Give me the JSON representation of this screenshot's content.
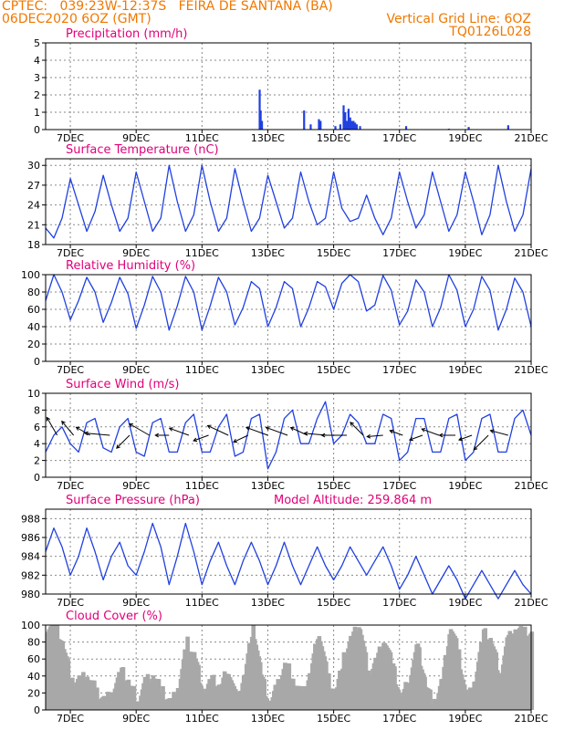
{
  "header": {
    "line1_left": "CPTEC:   039:23W-12:37S   FEIRA DE SANTANA (BA)",
    "line2_left": "06DEC2020 6OZ (GMT)",
    "line2_right": "Vertical Grid Line: 6OZ",
    "line3_right": "TQ0126L028"
  },
  "colors": {
    "header": "#f07800",
    "panel_title": "#e0007a",
    "series": "#2040e0",
    "cloud": "#a8a8a8",
    "wind_arrow": "#000000"
  },
  "x_axis": {
    "start": "2020-12-06 06Z",
    "end": "2020-12-21 00Z",
    "tick_labels": [
      "7DEC",
      "9DEC",
      "11DEC",
      "13DEC",
      "15DEC",
      "17DEC",
      "19DEC",
      "21DEC"
    ],
    "tick_days": [
      7,
      9,
      11,
      13,
      15,
      17,
      19,
      21
    ]
  },
  "chart_data": [
    {
      "type": "bar",
      "title": "Precipitation (mm/h)",
      "ylim": [
        0,
        5
      ],
      "yticks": [
        "0",
        "1",
        "2",
        "3",
        "4",
        "5"
      ],
      "grid": true,
      "points": [
        {
          "day": 12.75,
          "value": 2.3
        },
        {
          "day": 12.78,
          "value": 1.1
        },
        {
          "day": 12.82,
          "value": 0.5
        },
        {
          "day": 14.1,
          "value": 1.1
        },
        {
          "day": 14.3,
          "value": 0.3
        },
        {
          "day": 14.55,
          "value": 0.6
        },
        {
          "day": 14.6,
          "value": 0.5
        },
        {
          "day": 15.05,
          "value": 0.2
        },
        {
          "day": 15.2,
          "value": 0.3
        },
        {
          "day": 15.3,
          "value": 1.4
        },
        {
          "day": 15.35,
          "value": 1.0
        },
        {
          "day": 15.4,
          "value": 0.5
        },
        {
          "day": 15.45,
          "value": 1.2
        },
        {
          "day": 15.5,
          "value": 0.7
        },
        {
          "day": 15.55,
          "value": 0.5
        },
        {
          "day": 15.6,
          "value": 0.5
        },
        {
          "day": 15.65,
          "value": 0.4
        },
        {
          "day": 15.7,
          "value": 0.3
        },
        {
          "day": 15.8,
          "value": 0.2
        },
        {
          "day": 17.2,
          "value": 0.2
        },
        {
          "day": 18.5,
          "value": 0.05
        },
        {
          "day": 19.1,
          "value": 0.15
        },
        {
          "day": 20.3,
          "value": 0.25
        }
      ]
    },
    {
      "type": "line",
      "title": "Surface Temperature (nC)",
      "ylim": [
        18,
        31
      ],
      "yticks": [
        "18",
        "21",
        "24",
        "27",
        "30"
      ],
      "grid": true,
      "days": [
        6.25,
        6.5,
        6.75,
        7.0,
        7.25,
        7.5,
        7.75,
        8.0,
        8.25,
        8.5,
        8.75,
        9.0,
        9.25,
        9.5,
        9.75,
        10.0,
        10.25,
        10.5,
        10.75,
        11.0,
        11.25,
        11.5,
        11.75,
        12.0,
        12.25,
        12.5,
        12.75,
        13.0,
        13.25,
        13.5,
        13.75,
        14.0,
        14.25,
        14.5,
        14.75,
        15.0,
        15.25,
        15.5,
        15.75,
        16.0,
        16.25,
        16.5,
        16.75,
        17.0,
        17.25,
        17.5,
        17.75,
        18.0,
        18.25,
        18.5,
        18.75,
        19.0,
        19.25,
        19.5,
        19.75,
        20.0,
        20.25,
        20.5,
        20.75,
        21.0
      ],
      "values": [
        20.5,
        19,
        22,
        28,
        24,
        20,
        23,
        28.5,
        24,
        20,
        22,
        29,
        24.5,
        20,
        22,
        30,
        24.5,
        20,
        22.5,
        30,
        24.5,
        20,
        22,
        29.5,
        24.5,
        20,
        22,
        28.5,
        24.5,
        20.5,
        22,
        29,
        24.5,
        21,
        22,
        29,
        23.5,
        21.5,
        22,
        25.5,
        22,
        19.5,
        22,
        29,
        24.5,
        20.5,
        22.5,
        29,
        24.5,
        20,
        22.5,
        29,
        24.5,
        19.5,
        22.5,
        30,
        24.5,
        20,
        22.5,
        29.5
      ]
    },
    {
      "type": "line",
      "title": "Relative Humidity (%)",
      "ylim": [
        0,
        100
      ],
      "yticks": [
        "0",
        "20",
        "40",
        "60",
        "80",
        "100"
      ],
      "grid": true,
      "days": [
        6.25,
        6.5,
        6.75,
        7.0,
        7.25,
        7.5,
        7.75,
        8.0,
        8.25,
        8.5,
        8.75,
        9.0,
        9.25,
        9.5,
        9.75,
        10.0,
        10.25,
        10.5,
        10.75,
        11.0,
        11.25,
        11.5,
        11.75,
        12.0,
        12.25,
        12.5,
        12.75,
        13.0,
        13.25,
        13.5,
        13.75,
        14.0,
        14.25,
        14.5,
        14.75,
        15.0,
        15.25,
        15.5,
        15.75,
        16.0,
        16.25,
        16.5,
        16.75,
        17.0,
        17.25,
        17.5,
        17.75,
        18.0,
        18.25,
        18.5,
        18.75,
        19.0,
        19.25,
        19.5,
        19.75,
        20.0,
        20.25,
        20.5,
        20.75,
        21.0
      ],
      "values": [
        70,
        100,
        80,
        48,
        70,
        97,
        80,
        45,
        68,
        97,
        78,
        38,
        65,
        98,
        80,
        36,
        64,
        98,
        80,
        36,
        64,
        97,
        80,
        42,
        62,
        92,
        84,
        40,
        62,
        92,
        84,
        40,
        62,
        92,
        86,
        60,
        90,
        100,
        92,
        58,
        65,
        99,
        82,
        42,
        58,
        94,
        80,
        40,
        62,
        100,
        82,
        40,
        60,
        98,
        82,
        36,
        60,
        96,
        80,
        40
      ]
    },
    {
      "type": "line",
      "title": "Surface Wind (m/s)",
      "ylim": [
        0,
        10
      ],
      "yticks": [
        "0",
        "2",
        "4",
        "6",
        "8",
        "10"
      ],
      "grid": true,
      "days": [
        6.25,
        6.5,
        6.75,
        7.0,
        7.25,
        7.5,
        7.75,
        8.0,
        8.25,
        8.5,
        8.75,
        9.0,
        9.25,
        9.5,
        9.75,
        10.0,
        10.25,
        10.5,
        10.75,
        11.0,
        11.25,
        11.5,
        11.75,
        12.0,
        12.25,
        12.5,
        12.75,
        13.0,
        13.25,
        13.5,
        13.75,
        14.0,
        14.25,
        14.5,
        14.75,
        15.0,
        15.25,
        15.5,
        15.75,
        16.0,
        16.25,
        16.5,
        16.75,
        17.0,
        17.25,
        17.5,
        17.75,
        18.0,
        18.25,
        18.5,
        18.75,
        19.0,
        19.25,
        19.5,
        19.75,
        20.0,
        20.25,
        20.5,
        20.75,
        21.0
      ],
      "values": [
        3,
        5,
        6,
        4,
        3,
        6.5,
        7,
        3.5,
        3,
        6,
        7,
        3,
        2.5,
        6.5,
        7,
        3,
        3,
        6.5,
        7.5,
        3,
        3,
        6,
        7.5,
        2.5,
        3,
        7,
        7.5,
        1,
        3,
        7,
        8,
        4,
        4,
        7,
        9,
        4,
        5,
        7.5,
        6.5,
        4,
        4,
        7.5,
        7,
        2,
        3,
        7,
        7,
        3,
        3,
        7,
        7.5,
        2,
        3,
        7,
        7.5,
        3,
        3,
        7,
        8,
        5
      ],
      "arrows": [
        {
          "day": 6.6,
          "speed_ms": 4.5,
          "toward_deg": 330
        },
        {
          "day": 7.1,
          "speed_ms": 4.0,
          "toward_deg": 320
        },
        {
          "day": 7.6,
          "speed_ms": 3.5,
          "toward_deg": 300
        },
        {
          "day": 8.2,
          "speed_ms": 5.5,
          "toward_deg": 275
        },
        {
          "day": 8.8,
          "speed_ms": 4.0,
          "toward_deg": 225
        },
        {
          "day": 9.4,
          "speed_ms": 5.0,
          "toward_deg": 300
        },
        {
          "day": 10.0,
          "speed_ms": 3.0,
          "toward_deg": 270
        },
        {
          "day": 10.6,
          "speed_ms": 4.5,
          "toward_deg": 290
        },
        {
          "day": 11.2,
          "speed_ms": 3.5,
          "toward_deg": 250
        },
        {
          "day": 11.8,
          "speed_ms": 5.0,
          "toward_deg": 295
        },
        {
          "day": 12.4,
          "speed_ms": 3.5,
          "toward_deg": 245
        },
        {
          "day": 13.0,
          "speed_ms": 5.0,
          "toward_deg": 290
        },
        {
          "day": 13.6,
          "speed_ms": 5.0,
          "toward_deg": 290
        },
        {
          "day": 14.2,
          "speed_ms": 4.0,
          "toward_deg": 295
        },
        {
          "day": 14.8,
          "speed_ms": 5.0,
          "toward_deg": 275
        },
        {
          "day": 15.4,
          "speed_ms": 5.5,
          "toward_deg": 270
        },
        {
          "day": 15.9,
          "speed_ms": 4.0,
          "toward_deg": 315
        },
        {
          "day": 16.5,
          "speed_ms": 3.5,
          "toward_deg": 265
        },
        {
          "day": 17.1,
          "speed_ms": 3.0,
          "toward_deg": 290
        },
        {
          "day": 17.7,
          "speed_ms": 3.0,
          "toward_deg": 250
        },
        {
          "day": 18.2,
          "speed_ms": 4.0,
          "toward_deg": 290
        },
        {
          "day": 18.7,
          "speed_ms": 3.5,
          "toward_deg": 270
        },
        {
          "day": 19.2,
          "speed_ms": 3.0,
          "toward_deg": 250
        },
        {
          "day": 19.7,
          "speed_ms": 4.5,
          "toward_deg": 225
        },
        {
          "day": 20.3,
          "speed_ms": 4.0,
          "toward_deg": 285
        }
      ]
    },
    {
      "type": "line",
      "title": "Surface Pressure (hPa)",
      "subtitle": "Model Altitude: 259.864 m",
      "ylim": [
        980,
        989
      ],
      "yticks": [
        "980",
        "982",
        "984",
        "986",
        "988"
      ],
      "grid": true,
      "days": [
        6.25,
        6.5,
        6.75,
        7.0,
        7.25,
        7.5,
        7.75,
        8.0,
        8.25,
        8.5,
        8.75,
        9.0,
        9.25,
        9.5,
        9.75,
        10.0,
        10.25,
        10.5,
        10.75,
        11.0,
        11.25,
        11.5,
        11.75,
        12.0,
        12.25,
        12.5,
        12.75,
        13.0,
        13.25,
        13.5,
        13.75,
        14.0,
        14.25,
        14.5,
        14.75,
        15.0,
        15.25,
        15.5,
        15.75,
        16.0,
        16.25,
        16.5,
        16.75,
        17.0,
        17.25,
        17.5,
        17.75,
        18.0,
        18.25,
        18.5,
        18.75,
        19.0,
        19.25,
        19.5,
        19.75,
        20.0,
        20.25,
        20.5,
        20.75,
        21.0
      ],
      "values": [
        984.5,
        987,
        985,
        982,
        984,
        987,
        984.5,
        981.5,
        984,
        985.5,
        983,
        982,
        984.5,
        987.5,
        985,
        981,
        984,
        987.5,
        984.5,
        981,
        983.5,
        985.5,
        983,
        981,
        983.5,
        985.5,
        983.5,
        981,
        983,
        985.5,
        983,
        981,
        983,
        985,
        983,
        981.5,
        983,
        985,
        983.5,
        982,
        983.5,
        985,
        983,
        980.5,
        982,
        984,
        982,
        980,
        981.5,
        983,
        981.5,
        979.5,
        981,
        982.5,
        981,
        979.5,
        981,
        982.5,
        981,
        980
      ]
    },
    {
      "type": "bar",
      "title": "Cloud Cover (%)",
      "ylim": [
        0,
        100
      ],
      "yticks": [
        "0",
        "20",
        "40",
        "60",
        "80",
        "100"
      ],
      "grid": true,
      "days": [
        6.25,
        6.5,
        6.75,
        7.0,
        7.25,
        7.5,
        7.75,
        8.0,
        8.25,
        8.5,
        8.75,
        9.0,
        9.25,
        9.5,
        9.75,
        10.0,
        10.25,
        10.5,
        10.75,
        11.0,
        11.25,
        11.5,
        11.75,
        12.0,
        12.25,
        12.5,
        12.75,
        13.0,
        13.25,
        13.5,
        13.75,
        14.0,
        14.25,
        14.5,
        14.75,
        15.0,
        15.25,
        15.5,
        15.75,
        16.0,
        16.25,
        16.5,
        16.75,
        17.0,
        17.25,
        17.5,
        17.75,
        18.0,
        18.25,
        18.5,
        18.75,
        19.0,
        19.25,
        19.5,
        19.75,
        20.0,
        20.25,
        20.5,
        20.75,
        21.0
      ],
      "values": [
        100,
        100,
        75,
        30,
        35,
        40,
        20,
        10,
        25,
        45,
        30,
        10,
        35,
        40,
        20,
        5,
        30,
        80,
        60,
        20,
        35,
        25,
        50,
        10,
        45,
        100,
        40,
        5,
        30,
        55,
        35,
        15,
        45,
        95,
        40,
        20,
        60,
        85,
        100,
        40,
        60,
        85,
        50,
        10,
        40,
        75,
        30,
        5,
        35,
        100,
        65,
        10,
        40,
        90,
        80,
        40,
        85,
        95,
        90,
        85
      ]
    }
  ]
}
